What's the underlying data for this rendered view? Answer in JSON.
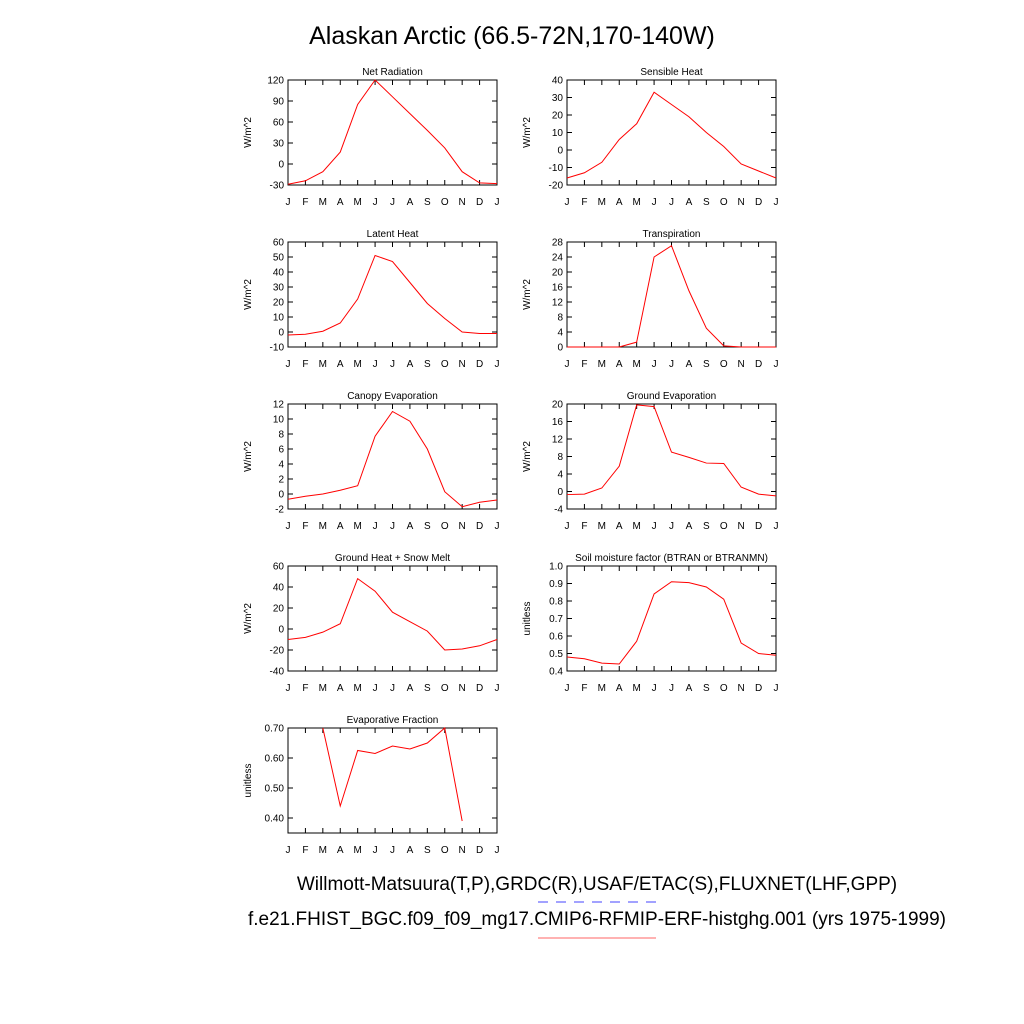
{
  "title": "Alaskan Arctic (66.5-72N,170-140W)",
  "footer": [
    "Willmott-Matsuura(T,P),GRDC(R),USAF/ETAC(S),FLUXNET(LHF,GPP)",
    "f.e21.FHIST_BGC.f09_f09_mg17.CMIP6-RFMIP-ERF-histghg.001 (yrs 1975-1999)"
  ],
  "chart_data": [
    {
      "type": "line",
      "title": "Net Radiation",
      "y_label": "W/m^2",
      "color": "#ff0000",
      "categories": [
        "J",
        "F",
        "M",
        "A",
        "M",
        "J",
        "J",
        "A",
        "S",
        "O",
        "N",
        "D",
        "J"
      ],
      "values": [
        -29,
        -24,
        -11,
        17,
        85,
        120,
        96,
        72,
        48,
        23,
        -11,
        -27,
        -28
      ],
      "ylim": [
        -30,
        120
      ],
      "yticks": [
        -30,
        0,
        30,
        60,
        90,
        120
      ]
    },
    {
      "type": "line",
      "title": "Sensible Heat",
      "y_label": "W/m^2",
      "color": "#ff0000",
      "categories": [
        "J",
        "F",
        "M",
        "A",
        "M",
        "J",
        "J",
        "A",
        "S",
        "O",
        "N",
        "D",
        "J"
      ],
      "values": [
        -16,
        -13,
        -7,
        6,
        15,
        33,
        26,
        19,
        10,
        2,
        -8,
        -12,
        -16
      ],
      "ylim": [
        -20,
        40
      ],
      "yticks": [
        -20,
        -10,
        0,
        10,
        20,
        30,
        40
      ]
    },
    {
      "type": "line",
      "title": "Latent Heat",
      "y_label": "W/m^2",
      "color": "#ff0000",
      "categories": [
        "J",
        "F",
        "M",
        "A",
        "M",
        "J",
        "J",
        "A",
        "S",
        "O",
        "N",
        "D",
        "J"
      ],
      "values": [
        -2,
        -1.5,
        0.5,
        6,
        22,
        51,
        47,
        33,
        19,
        9,
        0,
        -1,
        -1
      ],
      "ylim": [
        -10,
        60
      ],
      "yticks": [
        -10,
        0,
        10,
        20,
        30,
        40,
        50,
        60
      ]
    },
    {
      "type": "line",
      "title": "Transpiration",
      "y_label": "W/m^2",
      "color": "#ff0000",
      "categories": [
        "J",
        "F",
        "M",
        "A",
        "M",
        "J",
        "J",
        "A",
        "S",
        "O",
        "N",
        "D",
        "J"
      ],
      "values": [
        0,
        0,
        0,
        0,
        1.3,
        24,
        27,
        15,
        5,
        0.3,
        0,
        0,
        0
      ],
      "ylim": [
        0,
        28
      ],
      "yticks": [
        0,
        4,
        8,
        12,
        16,
        20,
        24,
        28
      ]
    },
    {
      "type": "line",
      "title": "Canopy Evaporation",
      "y_label": "W/m^2",
      "color": "#ff0000",
      "categories": [
        "J",
        "F",
        "M",
        "A",
        "M",
        "J",
        "J",
        "A",
        "S",
        "O",
        "N",
        "D",
        "J"
      ],
      "values": [
        -0.7,
        -0.3,
        0,
        0.5,
        1.1,
        7.7,
        11,
        9.7,
        6,
        0.3,
        -1.7,
        -1.1,
        -0.8
      ],
      "ylim": [
        -2,
        12
      ],
      "yticks": [
        -2,
        0,
        2,
        4,
        6,
        8,
        10,
        12
      ]
    },
    {
      "type": "line",
      "title": "Ground Evaporation",
      "y_label": "W/m^2",
      "color": "#ff0000",
      "categories": [
        "J",
        "F",
        "M",
        "A",
        "M",
        "J",
        "J",
        "A",
        "S",
        "O",
        "N",
        "D",
        "J"
      ],
      "values": [
        -0.7,
        -0.6,
        0.8,
        5.8,
        19.8,
        19.4,
        9,
        7.8,
        6.5,
        6.4,
        1,
        -0.6,
        -1
      ],
      "ylim": [
        -4,
        20
      ],
      "yticks": [
        -4,
        0,
        4,
        8,
        12,
        16,
        20
      ]
    },
    {
      "type": "line",
      "title": "Ground Heat + Snow Melt",
      "y_label": "W/m^2",
      "color": "#ff0000",
      "categories": [
        "J",
        "F",
        "M",
        "A",
        "M",
        "J",
        "J",
        "A",
        "S",
        "O",
        "N",
        "D",
        "J"
      ],
      "values": [
        -10,
        -8,
        -3,
        5,
        48,
        36,
        16,
        7,
        -2,
        -20,
        -19,
        -16,
        -10
      ],
      "ylim": [
        -40,
        60
      ],
      "yticks": [
        -40,
        -20,
        0,
        20,
        40,
        60
      ]
    },
    {
      "type": "line",
      "title": "Soil moisture factor (BTRAN or BTRANMN)",
      "y_label": "unitless",
      "color": "#ff0000",
      "categories": [
        "J",
        "F",
        "M",
        "A",
        "M",
        "J",
        "J",
        "A",
        "S",
        "O",
        "N",
        "D",
        "J"
      ],
      "values": [
        0.48,
        0.47,
        0.445,
        0.44,
        0.57,
        0.84,
        0.91,
        0.905,
        0.88,
        0.81,
        0.56,
        0.5,
        0.49
      ],
      "ylim": [
        0.4,
        1.0
      ],
      "yticks": [
        0.4,
        0.5,
        0.6,
        0.7,
        0.8,
        0.9,
        {
          "value": 1,
          "label": "1.0"
        }
      ]
    },
    {
      "type": "line",
      "title": "Evaporative Fraction",
      "y_label": "unitless",
      "color": "#ff0000",
      "categories": [
        "J",
        "F",
        "M",
        "A",
        "M",
        "J",
        "J",
        "A",
        "S",
        "O",
        "N",
        "D",
        "J"
      ],
      "values": [
        null,
        null,
        0.7,
        0.44,
        0.625,
        0.615,
        0.64,
        0.63,
        0.65,
        0.7,
        0.39,
        null,
        null
      ],
      "ylim": [
        0.35,
        0.7
      ],
      "yticks": [
        {
          "value": 0.4,
          "label": "0.40"
        },
        {
          "value": 0.5,
          "label": "0.50"
        },
        {
          "value": 0.6,
          "label": "0.60"
        },
        {
          "value": 0.7,
          "label": "0.70"
        }
      ]
    }
  ]
}
